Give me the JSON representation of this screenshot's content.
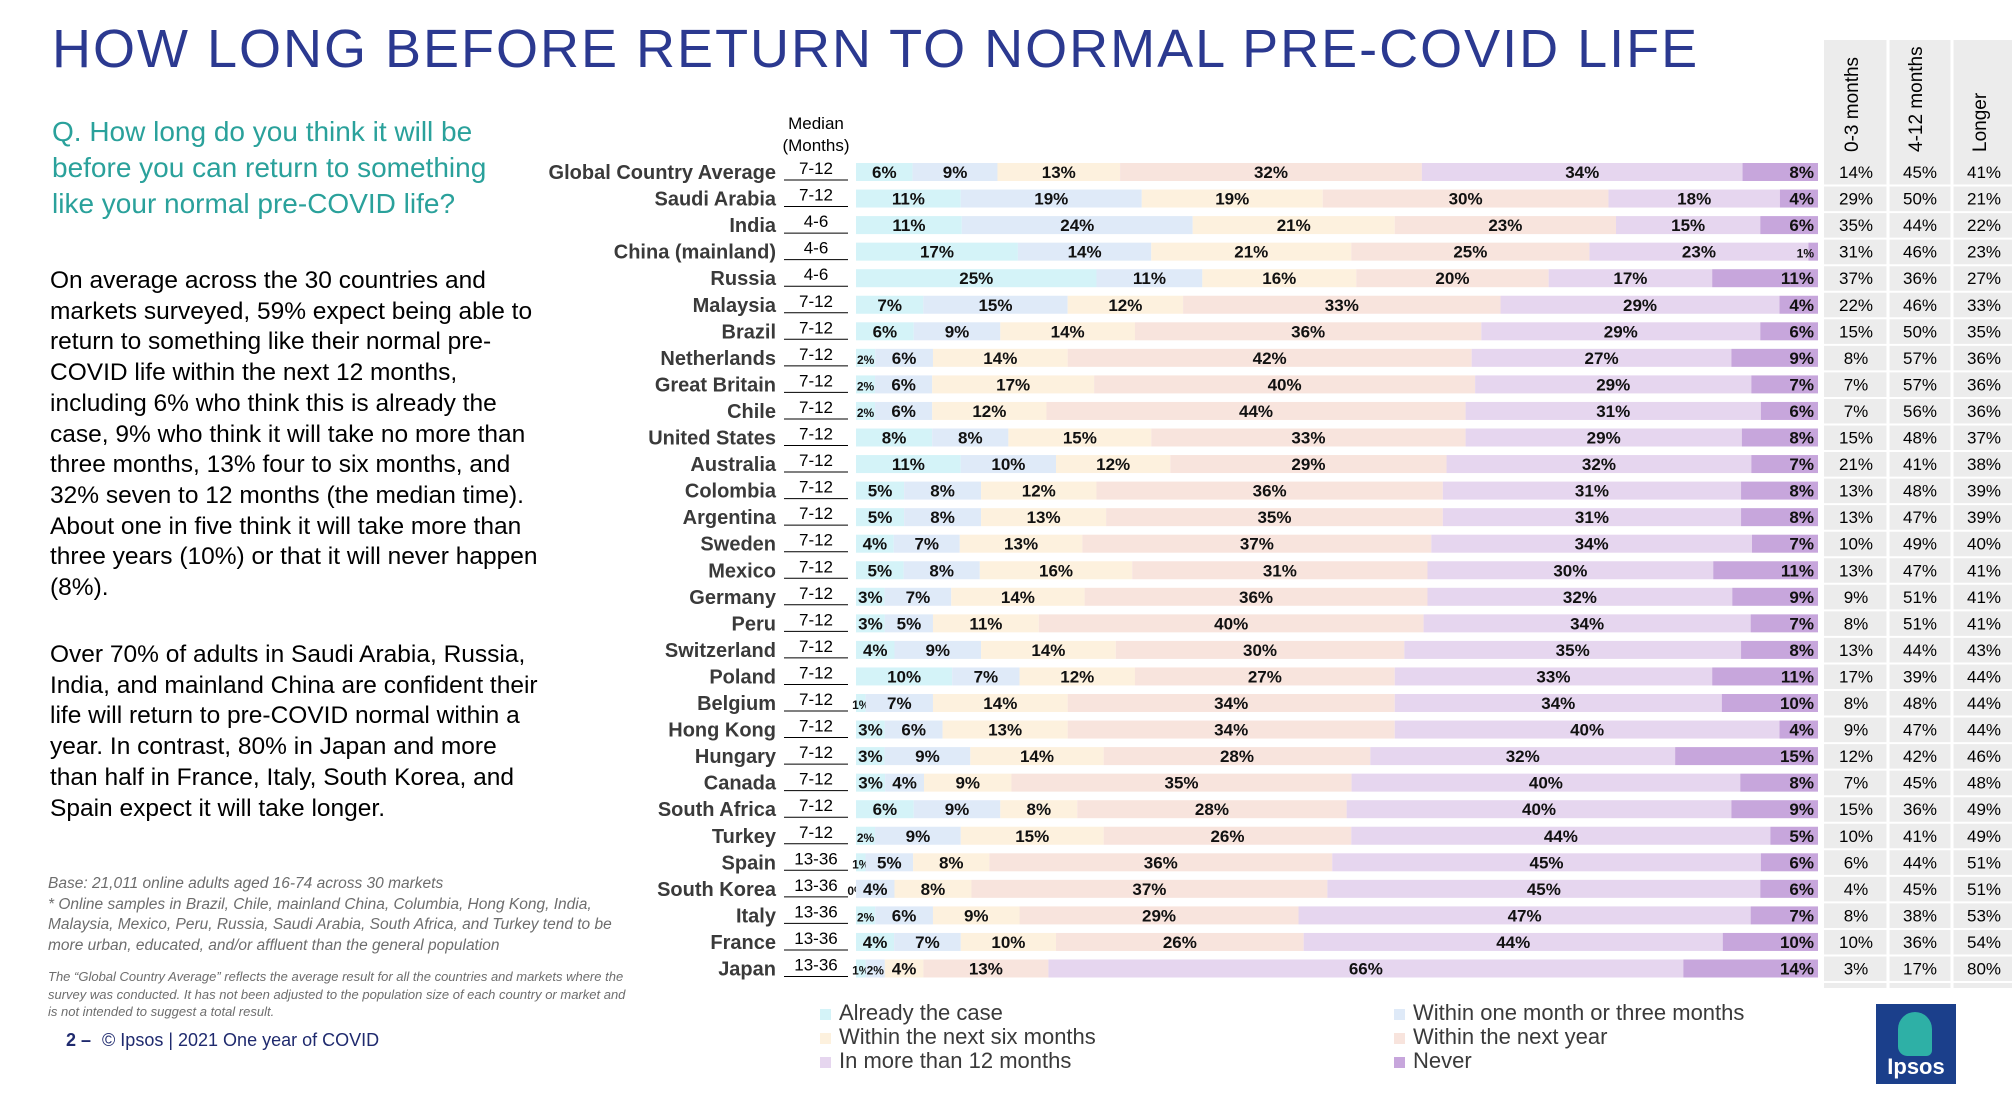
{
  "page": {
    "title": "HOW LONG BEFORE RETURN TO NORMAL PRE-COVID LIFE",
    "question": "Q. How long do you think it will be before you can return to something like your normal pre-COVID life?",
    "paragraph1": "On average across the 30 countries and markets surveyed, 59% expect being able to return to something like their normal pre-COVID life within the next 12 months, including 6% who think this is already the case, 9% who think it will take no more than three months, 13% four to six months, and 32% seven to 12 months (the median time). About one in five think it will take more than three years (10%) or that it will never happen (8%).",
    "paragraph2": "Over 70% of adults in Saudi Arabia, Russia, India, and mainland China are confident their life will return to pre-COVID normal within a year. In contrast, 80% in Japan and more than half in France, Italy, South Korea, and Spain expect it will take longer.",
    "base_line1": "Base: 21,011 online adults aged 16-74 across 30 markets",
    "base_line2": "* Online samples in Brazil, Chile, mainland China, Columbia, Hong Kong, India, Malaysia, Mexico, Peru, Russia, Saudi Arabia, South Africa, and Turkey tend to be more urban, educated, and/or affluent than the general population",
    "gca_note": "The “Global Country Average” reflects the average result for all the countries and markets where the survey was conducted. It has not been adjusted to the population size of each country or market and is not intended to suggest a total result.",
    "footer_page": "2 –",
    "footer_text": "© Ipsos | 2021 One year of COVID",
    "median_header": "Median (Months)",
    "logo_text": "Ipsos"
  },
  "colors": {
    "title": "#2b3990",
    "question": "#2aa19b",
    "segments": [
      "#d4f3f8",
      "#dfeaf8",
      "#fdf1de",
      "#f8e4dd",
      "#e6d6ef",
      "#c7a6dc"
    ],
    "table_bg": "#ececec"
  },
  "chart_data": {
    "type": "bar",
    "orientation": "horizontal-stacked-100",
    "series_names": [
      "Already the case",
      "Within one month or three months",
      "Within the next six months",
      "Within the next year",
      "In more than 12 months",
      "Never"
    ],
    "table_headers": [
      "0-3 months",
      "4-12 months",
      "Longer"
    ],
    "rows": [
      {
        "country": "Global Country Average",
        "median": "7-12",
        "values": [
          6,
          9,
          13,
          32,
          34,
          8
        ],
        "table": [
          "14%",
          "45%",
          "41%"
        ]
      },
      {
        "country": "Saudi Arabia",
        "median": "7-12",
        "values": [
          11,
          19,
          19,
          30,
          18,
          4
        ],
        "table": [
          "29%",
          "50%",
          "21%"
        ]
      },
      {
        "country": "India",
        "median": "4-6",
        "values": [
          11,
          24,
          21,
          23,
          15,
          6
        ],
        "table": [
          "35%",
          "44%",
          "22%"
        ]
      },
      {
        "country": "China (mainland)",
        "median": "4-6",
        "values": [
          17,
          14,
          21,
          25,
          23,
          1
        ],
        "table": [
          "31%",
          "46%",
          "23%"
        ]
      },
      {
        "country": "Russia",
        "median": "4-6",
        "values": [
          25,
          11,
          16,
          20,
          17,
          11
        ],
        "table": [
          "37%",
          "36%",
          "27%"
        ]
      },
      {
        "country": "Malaysia",
        "median": "7-12",
        "values": [
          7,
          15,
          12,
          33,
          29,
          4
        ],
        "table": [
          "22%",
          "46%",
          "33%"
        ]
      },
      {
        "country": "Brazil",
        "median": "7-12",
        "values": [
          6,
          9,
          14,
          36,
          29,
          6
        ],
        "table": [
          "15%",
          "50%",
          "35%"
        ]
      },
      {
        "country": "Netherlands",
        "median": "7-12",
        "values": [
          2,
          6,
          14,
          42,
          27,
          9
        ],
        "table": [
          "8%",
          "57%",
          "36%"
        ]
      },
      {
        "country": "Great Britain",
        "median": "7-12",
        "values": [
          2,
          6,
          17,
          40,
          29,
          7
        ],
        "table": [
          "7%",
          "57%",
          "36%"
        ]
      },
      {
        "country": "Chile",
        "median": "7-12",
        "values": [
          2,
          6,
          12,
          44,
          31,
          6
        ],
        "table": [
          "7%",
          "56%",
          "36%"
        ]
      },
      {
        "country": "United States",
        "median": "7-12",
        "values": [
          8,
          8,
          15,
          33,
          29,
          8
        ],
        "table": [
          "15%",
          "48%",
          "37%"
        ]
      },
      {
        "country": "Australia",
        "median": "7-12",
        "values": [
          11,
          10,
          12,
          29,
          32,
          7
        ],
        "table": [
          "21%",
          "41%",
          "38%"
        ]
      },
      {
        "country": "Colombia",
        "median": "7-12",
        "values": [
          5,
          8,
          12,
          36,
          31,
          8
        ],
        "table": [
          "13%",
          "48%",
          "39%"
        ]
      },
      {
        "country": "Argentina",
        "median": "7-12",
        "values": [
          5,
          8,
          13,
          35,
          31,
          8
        ],
        "table": [
          "13%",
          "47%",
          "39%"
        ]
      },
      {
        "country": "Sweden",
        "median": "7-12",
        "values": [
          4,
          7,
          13,
          37,
          34,
          7
        ],
        "table": [
          "10%",
          "49%",
          "40%"
        ]
      },
      {
        "country": "Mexico",
        "median": "7-12",
        "values": [
          5,
          8,
          16,
          31,
          30,
          11
        ],
        "table": [
          "13%",
          "47%",
          "41%"
        ]
      },
      {
        "country": "Germany",
        "median": "7-12",
        "values": [
          3,
          7,
          14,
          36,
          32,
          9
        ],
        "table": [
          "9%",
          "51%",
          "41%"
        ]
      },
      {
        "country": "Peru",
        "median": "7-12",
        "values": [
          3,
          5,
          11,
          40,
          34,
          7
        ],
        "table": [
          "8%",
          "51%",
          "41%"
        ]
      },
      {
        "country": "Switzerland",
        "median": "7-12",
        "values": [
          4,
          9,
          14,
          30,
          35,
          8
        ],
        "table": [
          "13%",
          "44%",
          "43%"
        ]
      },
      {
        "country": "Poland",
        "median": "7-12",
        "values": [
          10,
          7,
          12,
          27,
          33,
          11
        ],
        "table": [
          "17%",
          "39%",
          "44%"
        ]
      },
      {
        "country": "Belgium",
        "median": "7-12",
        "values": [
          1,
          7,
          14,
          34,
          34,
          10
        ],
        "table": [
          "8%",
          "48%",
          "44%"
        ]
      },
      {
        "country": "Hong Kong",
        "median": "7-12",
        "values": [
          3,
          6,
          13,
          34,
          40,
          4
        ],
        "table": [
          "9%",
          "47%",
          "44%"
        ]
      },
      {
        "country": "Hungary",
        "median": "7-12",
        "values": [
          3,
          9,
          14,
          28,
          32,
          15
        ],
        "table": [
          "12%",
          "42%",
          "46%"
        ]
      },
      {
        "country": "Canada",
        "median": "7-12",
        "values": [
          3,
          4,
          9,
          35,
          40,
          8
        ],
        "table": [
          "7%",
          "45%",
          "48%"
        ]
      },
      {
        "country": "South Africa",
        "median": "7-12",
        "values": [
          6,
          9,
          8,
          28,
          40,
          9
        ],
        "table": [
          "15%",
          "36%",
          "49%"
        ]
      },
      {
        "country": "Turkey",
        "median": "7-12",
        "values": [
          2,
          9,
          15,
          26,
          44,
          5
        ],
        "table": [
          "10%",
          "41%",
          "49%"
        ]
      },
      {
        "country": "Spain",
        "median": "13-36",
        "values": [
          1,
          5,
          8,
          36,
          45,
          6
        ],
        "table": [
          "6%",
          "44%",
          "51%"
        ]
      },
      {
        "country": "South Korea",
        "median": "13-36",
        "values": [
          0,
          4,
          8,
          37,
          45,
          6
        ],
        "table": [
          "4%",
          "45%",
          "51%"
        ]
      },
      {
        "country": "Italy",
        "median": "13-36",
        "values": [
          2,
          6,
          9,
          29,
          47,
          7
        ],
        "table": [
          "8%",
          "38%",
          "53%"
        ]
      },
      {
        "country": "France",
        "median": "13-36",
        "values": [
          4,
          7,
          10,
          26,
          44,
          10
        ],
        "table": [
          "10%",
          "36%",
          "54%"
        ]
      },
      {
        "country": "Japan",
        "median": "13-36",
        "values": [
          1,
          2,
          4,
          13,
          66,
          14
        ],
        "table": [
          "3%",
          "17%",
          "80%"
        ]
      }
    ]
  },
  "legend": [
    {
      "label": "Already the case",
      "color": "#d4f3f8"
    },
    {
      "label": "Within one month or three months",
      "color": "#dfeaf8"
    },
    {
      "label": "Within the next six months",
      "color": "#fdf1de"
    },
    {
      "label": "Within the next year",
      "color": "#f8e4dd"
    },
    {
      "label": "In more than 12 months",
      "color": "#e6d6ef"
    },
    {
      "label": "Never",
      "color": "#c7a6dc"
    }
  ]
}
